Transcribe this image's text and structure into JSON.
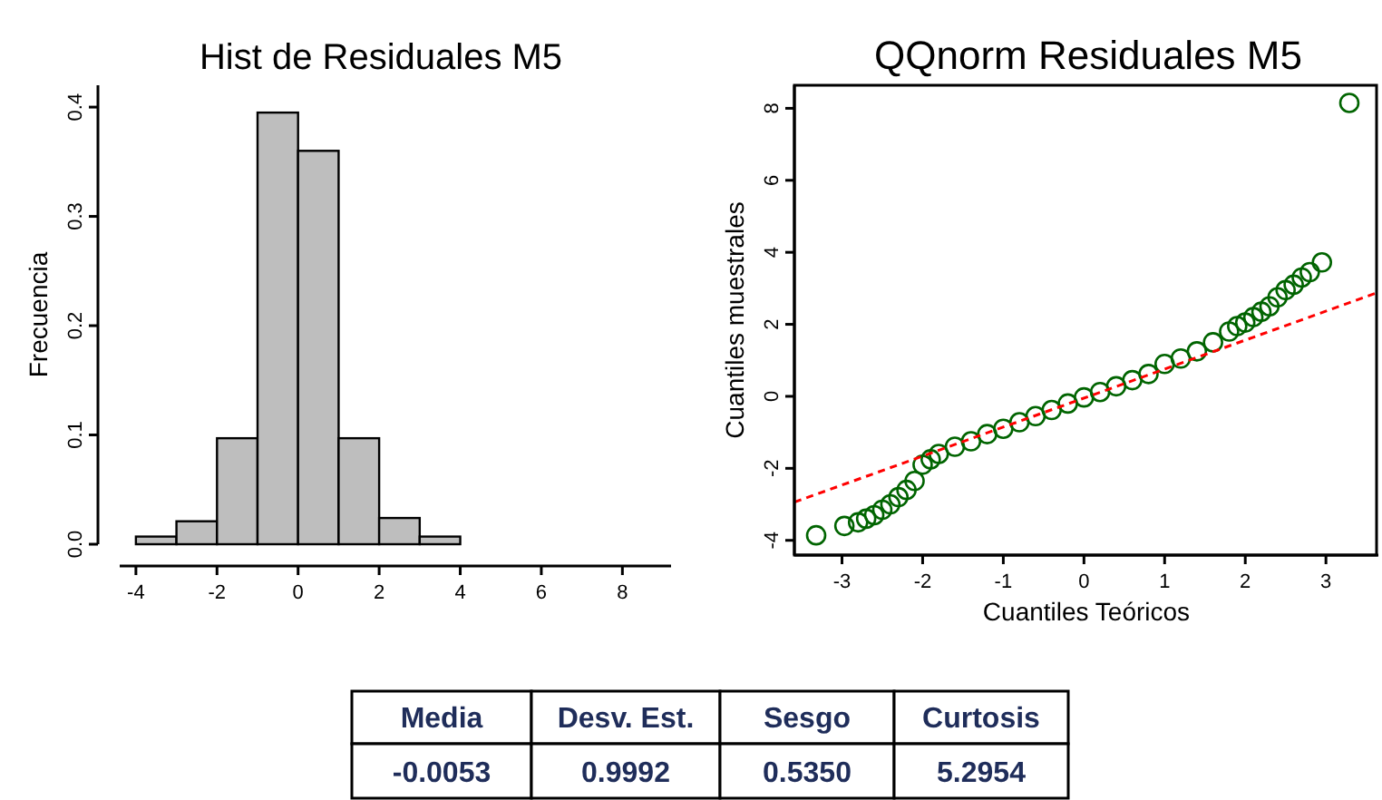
{
  "chart_data": [
    {
      "type": "histogram",
      "title": "Hist de Residuales M5",
      "ylabel": "Frecuencia",
      "color": "#bebebe",
      "bins": [
        -4,
        -3,
        -2,
        -1,
        0,
        1,
        2,
        3,
        4,
        5,
        6,
        7,
        8,
        9
      ],
      "values": [
        0.007,
        0.021,
        0.097,
        0.395,
        0.36,
        0.097,
        0.024,
        0.007,
        0,
        0,
        0,
        0,
        0
      ],
      "xlim": [
        -4.4,
        9.2
      ],
      "xticks": [
        -4,
        -2,
        0,
        2,
        4,
        6,
        8
      ],
      "ylim": [
        0,
        0.42
      ],
      "yticks": [
        {
          "value": 0,
          "label": "0.0"
        },
        {
          "value": 0.1,
          "label": "0.1"
        },
        {
          "value": 0.2,
          "label": "0.2"
        },
        {
          "value": 0.3,
          "label": "0.3"
        },
        {
          "value": 0.4,
          "label": "0.4"
        }
      ],
      "grid": false
    },
    {
      "type": "scatter",
      "title": "QQnorm  Residuales M5",
      "xlabel": "Cuantiles Teóricos",
      "ylabel": "Cuantiles muestrales",
      "marker": "circle",
      "grid": false,
      "xlim": [
        -3.59,
        3.65
      ],
      "xticks": [
        -3,
        -2,
        -1,
        0,
        1,
        2,
        3
      ],
      "ylim": [
        -4.41,
        8.64
      ],
      "yticks": [
        -4,
        -2,
        0,
        2,
        4,
        6,
        8
      ],
      "series": [
        {
          "color": "#006400",
          "x": [
            -3.32,
            -2.97,
            -2.8,
            -2.7,
            -2.6,
            -2.5,
            -2.4,
            -2.3,
            -2.2,
            -2.1,
            -2.0,
            -1.9,
            -1.8,
            -1.6,
            -1.4,
            -1.2,
            -1.0,
            -0.8,
            -0.6,
            -0.4,
            -0.2,
            0,
            0.2,
            0.4,
            0.6,
            0.8,
            1.0,
            1.2,
            1.4,
            1.6,
            1.8,
            1.9,
            2.0,
            2.1,
            2.2,
            2.3,
            2.4,
            2.5,
            2.6,
            2.7,
            2.8,
            2.95,
            3.29
          ],
          "values": [
            -3.86,
            -3.6,
            -3.5,
            -3.4,
            -3.3,
            -3.15,
            -3.0,
            -2.8,
            -2.6,
            -2.35,
            -1.9,
            -1.75,
            -1.6,
            -1.4,
            -1.25,
            -1.05,
            -0.9,
            -0.72,
            -0.55,
            -0.38,
            -0.2,
            -0.03,
            0.12,
            0.28,
            0.45,
            0.62,
            0.9,
            1.05,
            1.25,
            1.5,
            1.8,
            1.95,
            2.05,
            2.2,
            2.35,
            2.5,
            2.75,
            2.95,
            3.1,
            3.3,
            3.45,
            3.72,
            8.15
          ]
        },
        {
          "type": "line",
          "color": "#ff0000",
          "line_style": "dashed",
          "marker": "none",
          "x": [
            -3.59,
            3.65
          ],
          "values": [
            -2.94,
            2.89
          ]
        }
      ]
    },
    {
      "type": "other",
      "categories": [
        "Media",
        "Desv. Est.",
        "Sesgo",
        "Curtosis"
      ],
      "value_labels": [
        "-0.0053",
        "0.9992",
        "0.5350",
        "5.2954"
      ]
    }
  ]
}
